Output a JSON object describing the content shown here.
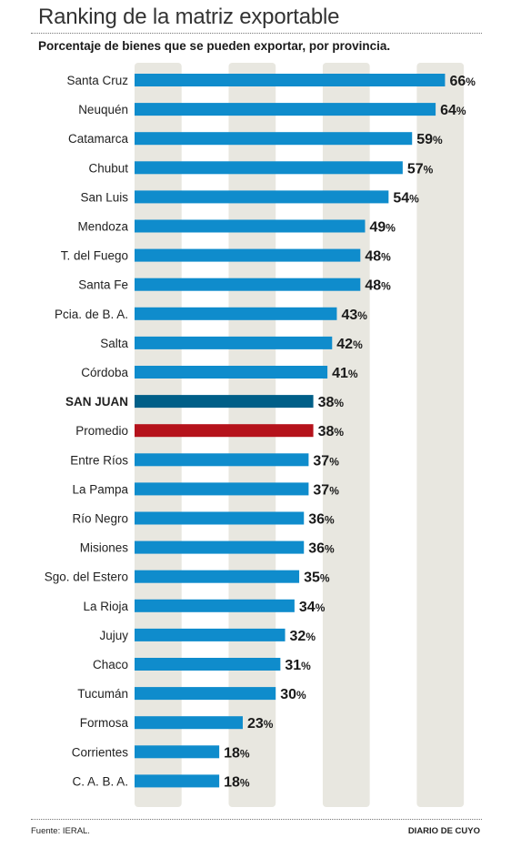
{
  "chart_data": {
    "type": "bar",
    "orientation": "horizontal",
    "title": "Ranking de la matriz exportable",
    "subtitle": "Porcentaje de bienes que se pueden exportar, por provincia.",
    "categories": [
      "Santa Cruz",
      "Neuquén",
      "Catamarca",
      "Chubut",
      "San Luis",
      "Mendoza",
      "T. del Fuego",
      "Santa Fe",
      "Pcia. de B. A.",
      "Salta",
      "Córdoba",
      "SAN JUAN",
      "Promedio",
      "Entre Ríos",
      "La Pampa",
      "Río Negro",
      "Misiones",
      "Sgo. del Estero",
      "La Rioja",
      "Jujuy",
      "Chaco",
      "Tucumán",
      "Formosa",
      "Corrientes",
      "C. A. B. A."
    ],
    "values": [
      66,
      64,
      59,
      57,
      54,
      49,
      48,
      48,
      43,
      42,
      41,
      38,
      38,
      37,
      37,
      36,
      36,
      35,
      34,
      32,
      31,
      30,
      23,
      18,
      18
    ],
    "value_suffix": "%",
    "highlight": {
      "SAN JUAN": "#005f88",
      "Promedio": "#b5121b"
    },
    "bar_color": "#0f8ccc",
    "band_color": "#e8e7e0",
    "xlim": [
      0,
      75
    ],
    "grid": "alternating vertical bands",
    "legend": "none"
  },
  "footer": {
    "source": "Fuente: IERAL.",
    "publisher": "DIARIO DE CUYO"
  }
}
